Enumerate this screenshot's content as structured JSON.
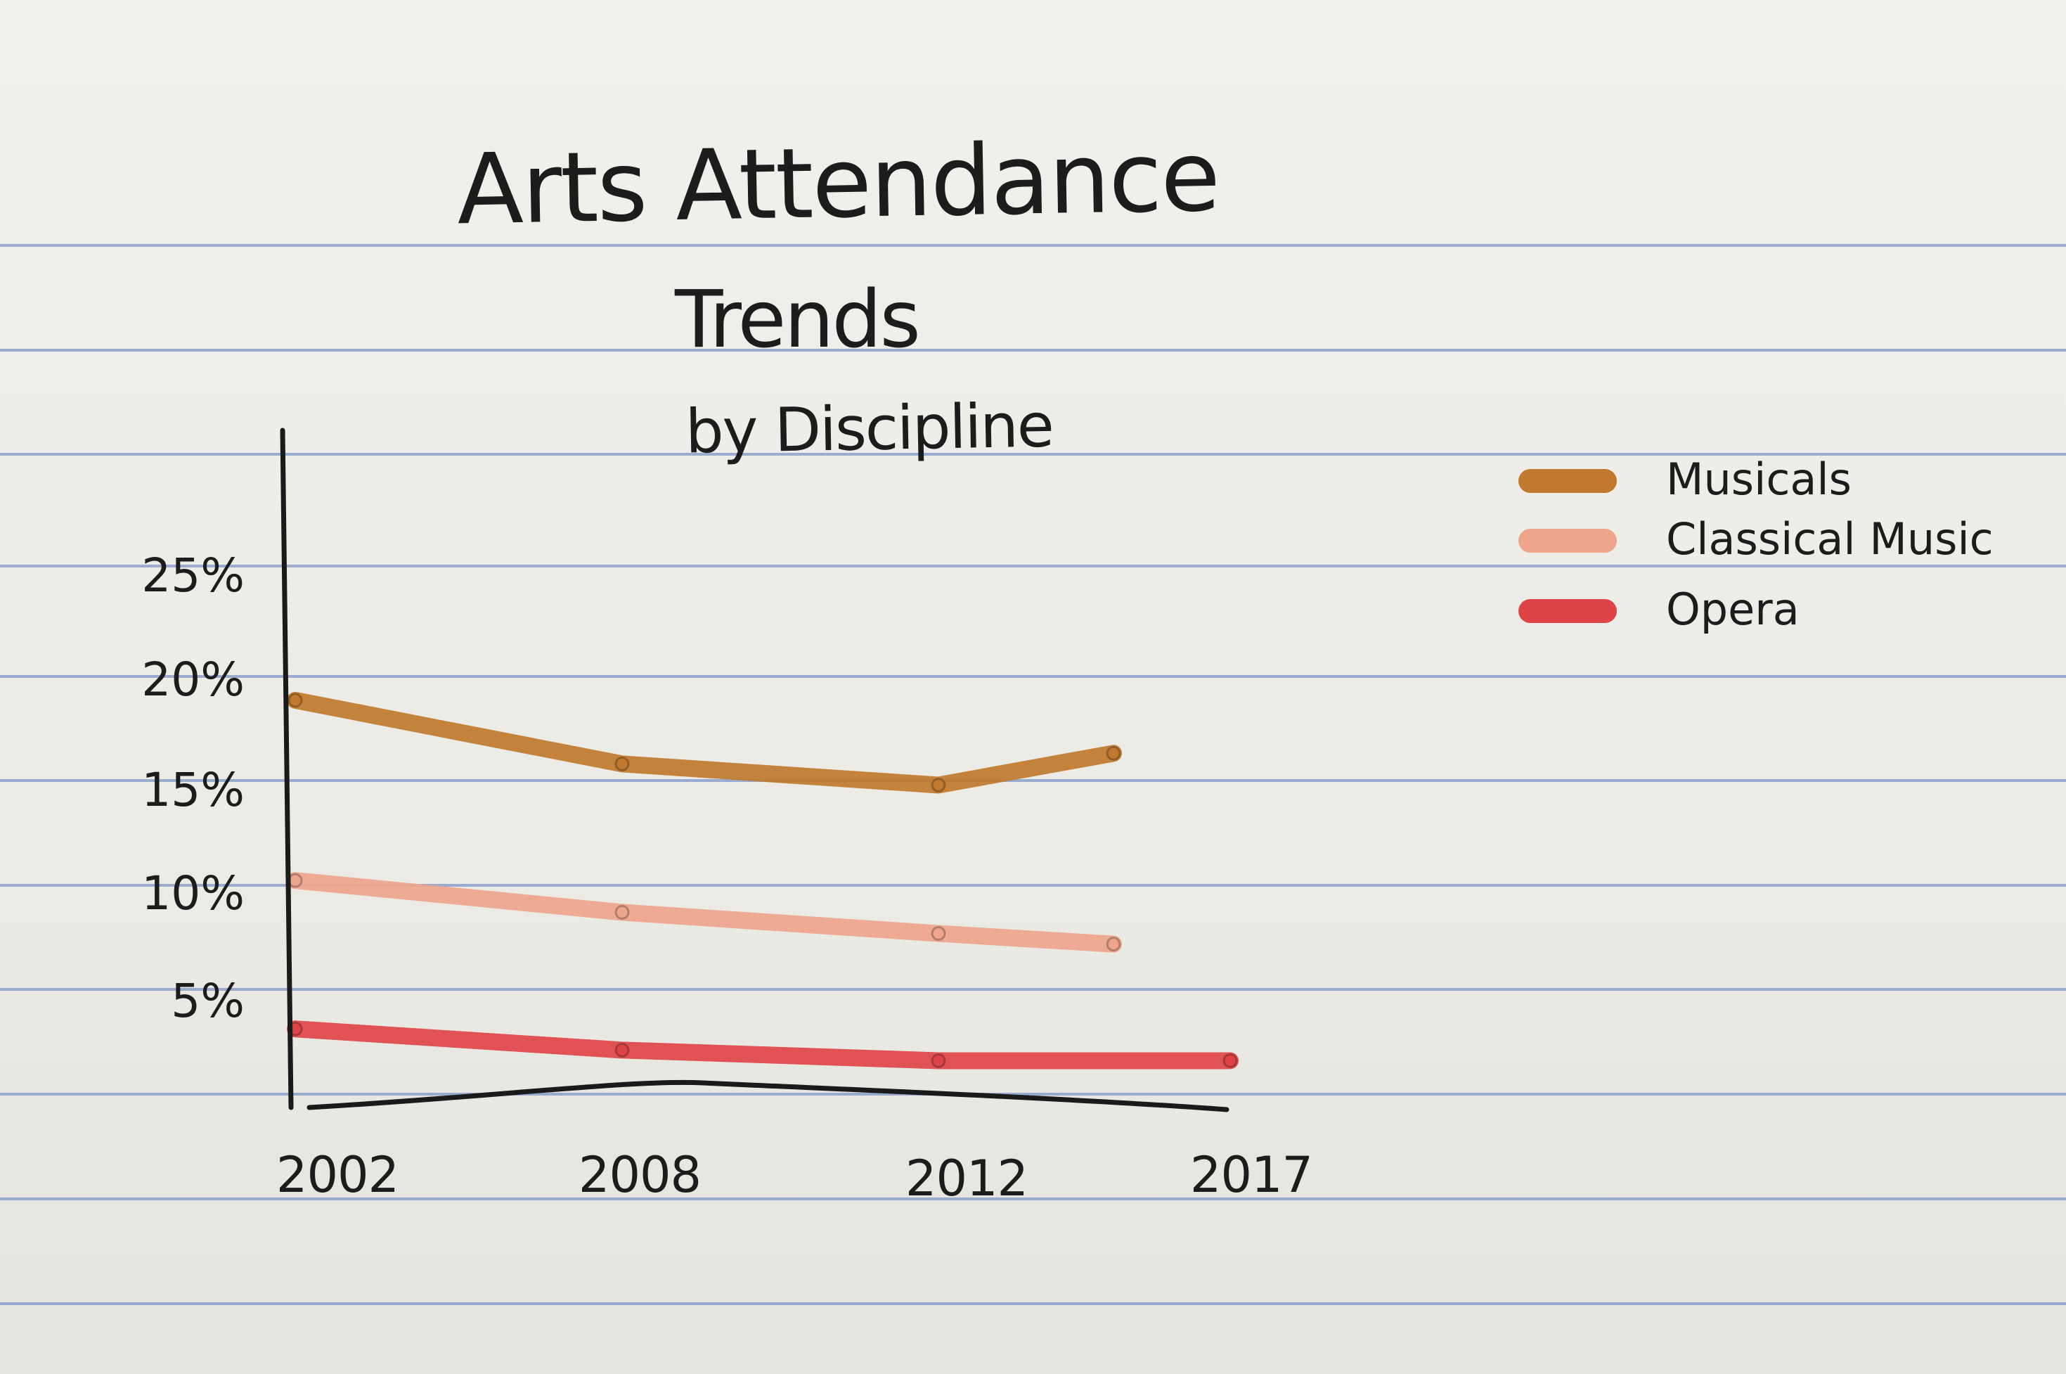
{
  "chart_data": {
    "type": "line",
    "title": "Arts Attendance",
    "title_line2": "Trends",
    "subtitle": "by Discipline",
    "xlabel": "",
    "ylabel": "",
    "x": [
      "2002",
      "2008",
      "2012",
      "2017"
    ],
    "y_ticks": [
      "5%",
      "10%",
      "15%",
      "20%",
      "25%"
    ],
    "y_tick_values": [
      5,
      10,
      15,
      20,
      25
    ],
    "ylim": [
      0,
      28
    ],
    "grid": false,
    "legend_position": "top-right",
    "series": [
      {
        "name": "Musicals",
        "color": "#c0792e",
        "x": [
          2002,
          2008,
          2012,
          2015
        ],
        "values": [
          19,
          16,
          15,
          16.5
        ]
      },
      {
        "name": "Classical Music",
        "color": "#efa48c",
        "x": [
          2002,
          2008,
          2012,
          2015
        ],
        "values": [
          10.5,
          9,
          8,
          7.5
        ]
      },
      {
        "name": "Opera",
        "color": "#de4447",
        "x": [
          2002,
          2008,
          2012,
          2017
        ],
        "values": [
          3.5,
          2.5,
          2,
          2
        ]
      }
    ]
  }
}
